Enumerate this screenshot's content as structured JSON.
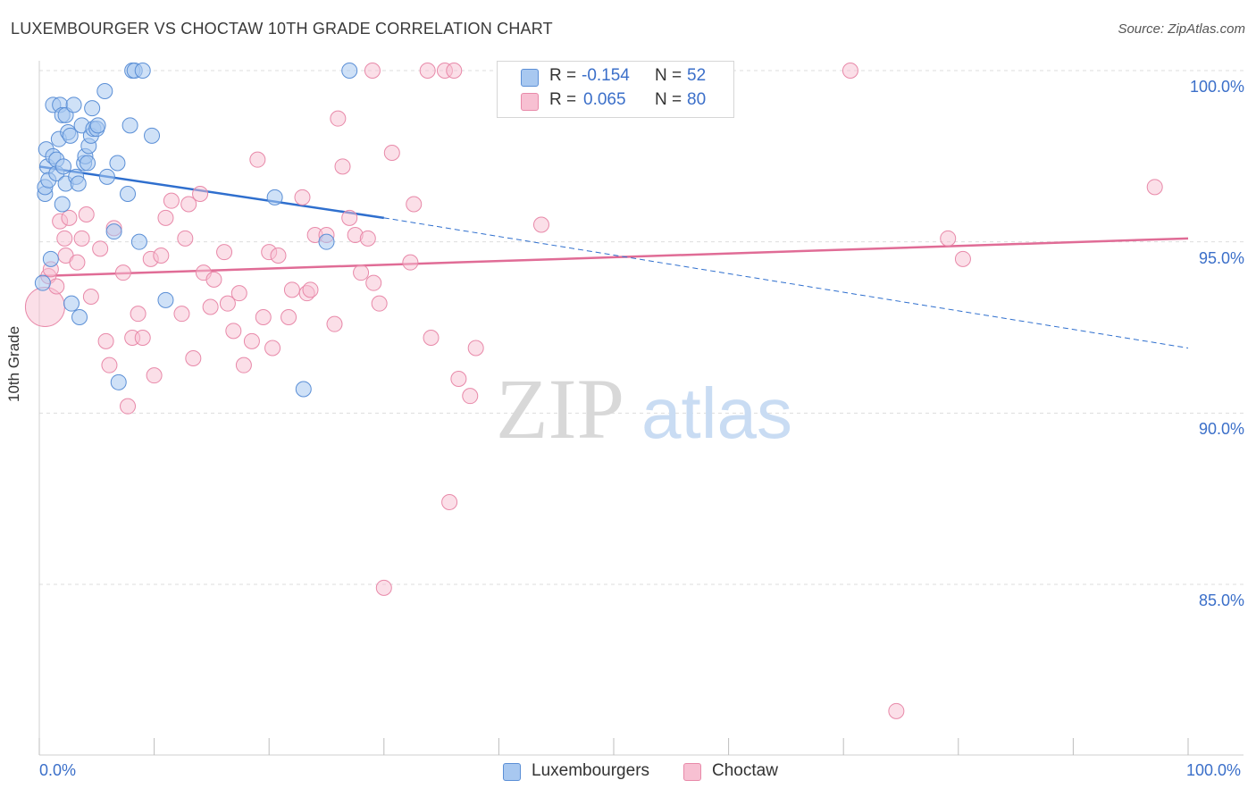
{
  "title": "LUXEMBOURGER VS CHOCTAW 10TH GRADE CORRELATION CHART",
  "source": "Source: ZipAtlas.com",
  "watermark": {
    "zip": "ZIP",
    "atlas": "atlas"
  },
  "colors": {
    "blue_fill": "#a8c8f0",
    "blue_stroke": "#5b8fd6",
    "blue_line": "#2f6fce",
    "pink_fill": "#f7c0d2",
    "pink_stroke": "#e889a9",
    "pink_line": "#e06c96",
    "axis_label": "#3b6fc9",
    "grid": "#dddddd"
  },
  "stats": [
    {
      "r_label": "R =",
      "r_value": "-0.154",
      "n_label": "N =",
      "n_value": "52",
      "color": "#a8c8f0",
      "stroke": "#5b8fd6"
    },
    {
      "r_label": "R =",
      "r_value": "0.065",
      "n_label": "N =",
      "n_value": "80",
      "color": "#f7c0d2",
      "stroke": "#e889a9"
    }
  ],
  "legend": [
    {
      "label": "Luxembourgers",
      "color": "#a8c8f0",
      "stroke": "#5b8fd6"
    },
    {
      "label": "Choctaw",
      "color": "#f7c0d2",
      "stroke": "#e889a9"
    }
  ],
  "chart_data": {
    "type": "scatter",
    "title": "LUXEMBOURGER VS CHOCTAW 10TH GRADE CORRELATION CHART",
    "xlabel": "",
    "ylabel": "10th Grade",
    "xlim": [
      0,
      100
    ],
    "ylim": [
      80.5,
      100.8
    ],
    "x_tick_labels": [
      "0.0%",
      "100.0%"
    ],
    "y_ticks": [
      100,
      95,
      90,
      85
    ],
    "y_tick_labels": [
      "100.0%",
      "95.0%",
      "90.0%",
      "85.0%"
    ],
    "series": [
      {
        "name": "Luxembourgers",
        "trend": {
          "x0": 0,
          "y0": 97.2,
          "x1": 30,
          "y1": 95.7,
          "dashed_to_x": 100,
          "dashed_to_y": 91.9
        },
        "points": [
          [
            0.3,
            93.8
          ],
          [
            0.5,
            96.4
          ],
          [
            0.5,
            96.6
          ],
          [
            0.6,
            97.7
          ],
          [
            0.7,
            97.2
          ],
          [
            0.8,
            96.8
          ],
          [
            1.0,
            94.5
          ],
          [
            1.2,
            97.5
          ],
          [
            1.2,
            99.0
          ],
          [
            1.5,
            97.0
          ],
          [
            1.5,
            97.4
          ],
          [
            1.7,
            98.0
          ],
          [
            1.8,
            99.0
          ],
          [
            2.0,
            98.7
          ],
          [
            2.0,
            96.1
          ],
          [
            2.1,
            97.2
          ],
          [
            2.3,
            96.7
          ],
          [
            2.3,
            98.7
          ],
          [
            2.5,
            98.2
          ],
          [
            2.7,
            98.1
          ],
          [
            2.8,
            93.2
          ],
          [
            3.0,
            99.0
          ],
          [
            3.2,
            96.9
          ],
          [
            3.4,
            96.7
          ],
          [
            3.5,
            92.8
          ],
          [
            3.7,
            98.4
          ],
          [
            3.9,
            97.3
          ],
          [
            4.0,
            97.5
          ],
          [
            4.2,
            97.3
          ],
          [
            4.3,
            97.8
          ],
          [
            4.5,
            98.1
          ],
          [
            4.6,
            98.9
          ],
          [
            4.7,
            98.3
          ],
          [
            5.0,
            98.3
          ],
          [
            5.1,
            98.4
          ],
          [
            5.7,
            99.4
          ],
          [
            5.9,
            96.9
          ],
          [
            6.5,
            95.3
          ],
          [
            6.8,
            97.3
          ],
          [
            6.9,
            90.9
          ],
          [
            7.7,
            96.4
          ],
          [
            7.9,
            98.4
          ],
          [
            8.1,
            100.0
          ],
          [
            8.3,
            100.0
          ],
          [
            8.7,
            95.0
          ],
          [
            9.0,
            100.0
          ],
          [
            9.8,
            98.1
          ],
          [
            11.0,
            93.3
          ],
          [
            20.5,
            96.3
          ],
          [
            23.0,
            90.7
          ],
          [
            25.0,
            95.0
          ],
          [
            27.0,
            100.0
          ]
        ]
      },
      {
        "name": "Choctaw",
        "trend": {
          "x0": 0,
          "y0": 94.0,
          "x1": 100,
          "y1": 95.1
        },
        "points": [
          [
            0.5,
            93.1
          ],
          [
            0.8,
            94.0
          ],
          [
            1.0,
            94.2
          ],
          [
            1.5,
            93.7
          ],
          [
            1.8,
            95.6
          ],
          [
            2.2,
            95.1
          ],
          [
            2.3,
            94.6
          ],
          [
            2.6,
            95.7
          ],
          [
            3.3,
            94.4
          ],
          [
            3.7,
            95.1
          ],
          [
            4.1,
            95.8
          ],
          [
            4.5,
            93.4
          ],
          [
            5.3,
            94.8
          ],
          [
            5.8,
            92.1
          ],
          [
            6.1,
            91.4
          ],
          [
            6.5,
            95.4
          ],
          [
            7.3,
            94.1
          ],
          [
            7.7,
            90.2
          ],
          [
            8.1,
            92.2
          ],
          [
            8.6,
            92.9
          ],
          [
            9.0,
            92.2
          ],
          [
            9.7,
            94.5
          ],
          [
            10.0,
            91.1
          ],
          [
            10.6,
            94.6
          ],
          [
            11.0,
            95.7
          ],
          [
            11.5,
            96.2
          ],
          [
            12.4,
            92.9
          ],
          [
            12.7,
            95.1
          ],
          [
            13.0,
            96.1
          ],
          [
            13.4,
            91.6
          ],
          [
            14.0,
            96.4
          ],
          [
            14.3,
            94.1
          ],
          [
            14.9,
            93.1
          ],
          [
            15.2,
            93.9
          ],
          [
            16.1,
            94.7
          ],
          [
            16.4,
            93.2
          ],
          [
            16.9,
            92.4
          ],
          [
            17.4,
            93.5
          ],
          [
            17.8,
            91.4
          ],
          [
            18.5,
            92.1
          ],
          [
            19.0,
            97.4
          ],
          [
            19.5,
            92.8
          ],
          [
            20.0,
            94.7
          ],
          [
            20.3,
            91.9
          ],
          [
            20.8,
            94.6
          ],
          [
            21.7,
            92.8
          ],
          [
            22.0,
            93.6
          ],
          [
            22.9,
            96.3
          ],
          [
            23.3,
            93.5
          ],
          [
            23.6,
            93.6
          ],
          [
            24.0,
            95.2
          ],
          [
            25.0,
            95.2
          ],
          [
            25.7,
            92.6
          ],
          [
            26.0,
            98.6
          ],
          [
            26.4,
            97.2
          ],
          [
            27.0,
            95.7
          ],
          [
            27.5,
            95.2
          ],
          [
            28.0,
            94.1
          ],
          [
            28.6,
            95.1
          ],
          [
            29.0,
            100.0
          ],
          [
            29.1,
            93.8
          ],
          [
            29.6,
            93.2
          ],
          [
            30.0,
            84.9
          ],
          [
            30.7,
            97.6
          ],
          [
            32.3,
            94.4
          ],
          [
            32.6,
            96.1
          ],
          [
            33.8,
            100.0
          ],
          [
            34.1,
            92.2
          ],
          [
            35.3,
            100.0
          ],
          [
            35.7,
            87.4
          ],
          [
            36.1,
            100.0
          ],
          [
            36.5,
            91.0
          ],
          [
            37.5,
            90.5
          ],
          [
            38.0,
            91.9
          ],
          [
            43.7,
            95.5
          ],
          [
            70.6,
            100.0
          ],
          [
            74.6,
            81.3
          ],
          [
            79.1,
            95.1
          ],
          [
            80.4,
            94.5
          ],
          [
            97.1,
            96.6
          ]
        ]
      }
    ]
  }
}
